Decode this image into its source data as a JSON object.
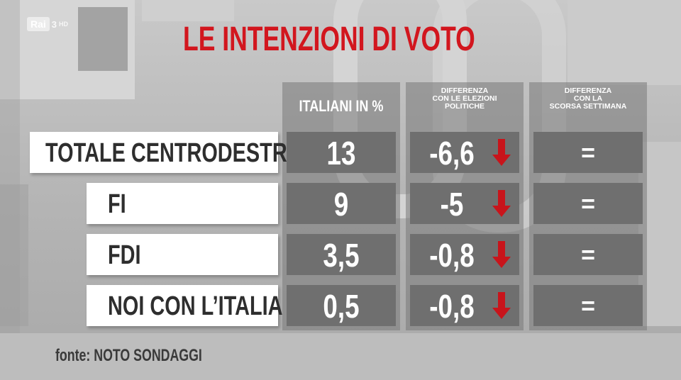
{
  "logo": {
    "brand": "Rai",
    "channel": "3",
    "quality": "HD"
  },
  "title": "LE INTENZIONI DI VOTO",
  "columns": [
    {
      "label": "ITALIANI IN %"
    },
    {
      "label_lines": [
        "DIFFERENZA",
        "CON LE ELEZIONI",
        "POLITICHE"
      ]
    },
    {
      "label_lines": [
        "DIFFERENZA",
        "CON LA",
        "SCORSA SETTIMANA"
      ]
    }
  ],
  "rows": [
    {
      "name": "TOTALE CENTRODESTRA",
      "percent": "13",
      "diff_elections": "-6,6",
      "trend": "down",
      "diff_week": "="
    },
    {
      "name": "FI",
      "percent": "9",
      "diff_elections": "-5",
      "trend": "down",
      "diff_week": "="
    },
    {
      "name": "FDI",
      "percent": "3,5",
      "diff_elections": "-0,8",
      "trend": "down",
      "diff_week": "="
    },
    {
      "name": "NOI CON L’ITALIA",
      "percent": "0,5",
      "diff_elections": "-0,8",
      "trend": "down",
      "diff_week": "="
    }
  ],
  "source": "fonte: NOTO SONDAGGI",
  "colors": {
    "title": "#d2161e",
    "arrow": "#c8141b",
    "cell": "#6f6f6f",
    "label_bg": "#ffffff"
  }
}
